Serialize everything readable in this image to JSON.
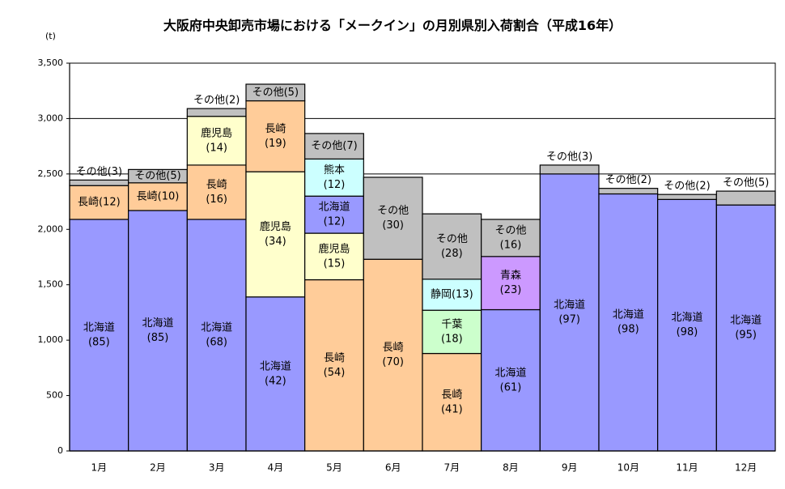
{
  "chart_data": {
    "type": "bar",
    "stacked": true,
    "title": "大阪府中央卸売市場における「メークイン」の月別県別入荷割合（平成16年）",
    "unit_label": "(t)",
    "ylim": [
      0,
      3500
    ],
    "yticks": [
      0,
      500,
      1000,
      1500,
      2000,
      2500,
      3000,
      3500
    ],
    "ytick_labels": [
      "0",
      "500",
      "1,000",
      "1,500",
      "2,000",
      "2,500",
      "3,000",
      "3,500"
    ],
    "grid": true,
    "categories": [
      "1月",
      "2月",
      "3月",
      "4月",
      "5月",
      "6月",
      "7月",
      "8月",
      "9月",
      "10月",
      "11月",
      "12月"
    ],
    "bars": [
      {
        "month": "1月",
        "segments": [
          {
            "name": "北海道",
            "pct": "(85)",
            "value": 2090,
            "color": "#9999ff",
            "label_pos": "inside"
          },
          {
            "name": "長崎",
            "pct": "(12)",
            "value": 305,
            "color": "#ffcc99",
            "label_pos": "inline"
          },
          {
            "name": "その他",
            "pct": "(3)",
            "value": 50,
            "color": "#c0c0c0",
            "label_pos": "above"
          }
        ]
      },
      {
        "month": "2月",
        "segments": [
          {
            "name": "北海道",
            "pct": "(85)",
            "value": 2170,
            "color": "#9999ff",
            "label_pos": "inside"
          },
          {
            "name": "長崎",
            "pct": "(10)",
            "value": 250,
            "color": "#ffcc99",
            "label_pos": "inline"
          },
          {
            "name": "その他",
            "pct": "(5)",
            "value": 120,
            "color": "#c0c0c0",
            "label_pos": "inline"
          }
        ]
      },
      {
        "month": "3月",
        "segments": [
          {
            "name": "北海道",
            "pct": "(68)",
            "value": 2090,
            "color": "#9999ff",
            "label_pos": "inside"
          },
          {
            "name": "長崎",
            "pct": "(16)",
            "value": 490,
            "color": "#ffcc99",
            "label_pos": "inside"
          },
          {
            "name": "鹿児島",
            "pct": "(14)",
            "value": 440,
            "color": "#ffffcc",
            "label_pos": "inside"
          },
          {
            "name": "その他",
            "pct": "(2)",
            "value": 70,
            "color": "#c0c0c0",
            "label_pos": "above"
          }
        ]
      },
      {
        "month": "4月",
        "segments": [
          {
            "name": "北海道",
            "pct": "(42)",
            "value": 1390,
            "color": "#9999ff",
            "label_pos": "inside"
          },
          {
            "name": "鹿児島",
            "pct": "(34)",
            "value": 1130,
            "color": "#ffffcc",
            "label_pos": "inside"
          },
          {
            "name": "長崎",
            "pct": "(19)",
            "value": 640,
            "color": "#ffcc99",
            "label_pos": "inside"
          },
          {
            "name": "その他",
            "pct": "(5)",
            "value": 150,
            "color": "#c0c0c0",
            "label_pos": "inline"
          }
        ]
      },
      {
        "month": "5月",
        "segments": [
          {
            "name": "長崎",
            "pct": "(54)",
            "value": 1545,
            "color": "#ffcc99",
            "label_pos": "inside"
          },
          {
            "name": "鹿児島",
            "pct": "(15)",
            "value": 420,
            "color": "#ffffcc",
            "label_pos": "inside"
          },
          {
            "name": "北海道",
            "pct": "(12)",
            "value": 335,
            "color": "#9999ff",
            "label_pos": "inside"
          },
          {
            "name": "熊本",
            "pct": "(12)",
            "value": 335,
            "color": "#ccffff",
            "label_pos": "inside"
          },
          {
            "name": "その他",
            "pct": "(7)",
            "value": 230,
            "color": "#c0c0c0",
            "label_pos": "inline"
          }
        ]
      },
      {
        "month": "6月",
        "segments": [
          {
            "name": "長崎",
            "pct": "(70)",
            "value": 1730,
            "color": "#ffcc99",
            "label_pos": "inside"
          },
          {
            "name": "その他",
            "pct": "(30)",
            "value": 740,
            "color": "#c0c0c0",
            "label_pos": "inside"
          }
        ]
      },
      {
        "month": "7月",
        "segments": [
          {
            "name": "長崎",
            "pct": "(41)",
            "value": 880,
            "color": "#ffcc99",
            "label_pos": "inside"
          },
          {
            "name": "千葉",
            "pct": "(18)",
            "value": 390,
            "color": "#ccffcc",
            "label_pos": "inside"
          },
          {
            "name": "静岡",
            "pct": "(13)",
            "value": 280,
            "color": "#ccffff",
            "label_pos": "inline"
          },
          {
            "name": "その他",
            "pct": "(28)",
            "value": 590,
            "color": "#c0c0c0",
            "label_pos": "inside"
          }
        ]
      },
      {
        "month": "8月",
        "segments": [
          {
            "name": "北海道",
            "pct": "(61)",
            "value": 1275,
            "color": "#9999ff",
            "label_pos": "inside"
          },
          {
            "name": "青森",
            "pct": "(23)",
            "value": 480,
            "color": "#cc99ff",
            "label_pos": "inside"
          },
          {
            "name": "その他",
            "pct": "(16)",
            "value": 335,
            "color": "#c0c0c0",
            "label_pos": "inside"
          }
        ]
      },
      {
        "month": "9月",
        "segments": [
          {
            "name": "北海道",
            "pct": "(97)",
            "value": 2500,
            "color": "#9999ff",
            "label_pos": "inside"
          },
          {
            "name": "その他",
            "pct": "(3)",
            "value": 80,
            "color": "#c0c0c0",
            "label_pos": "above"
          }
        ]
      },
      {
        "month": "10月",
        "segments": [
          {
            "name": "北海道",
            "pct": "(98)",
            "value": 2320,
            "color": "#9999ff",
            "label_pos": "inside"
          },
          {
            "name": "その他",
            "pct": "(2)",
            "value": 50,
            "color": "#c0c0c0",
            "label_pos": "above"
          }
        ]
      },
      {
        "month": "11月",
        "segments": [
          {
            "name": "北海道",
            "pct": "(98)",
            "value": 2270,
            "color": "#9999ff",
            "label_pos": "inside"
          },
          {
            "name": "その他",
            "pct": "(2)",
            "value": 45,
            "color": "#c0c0c0",
            "label_pos": "above"
          }
        ]
      },
      {
        "month": "12月",
        "segments": [
          {
            "name": "北海道",
            "pct": "(95)",
            "value": 2220,
            "color": "#9999ff",
            "label_pos": "inside"
          },
          {
            "name": "その他",
            "pct": "(5)",
            "value": 125,
            "color": "#c0c0c0",
            "label_pos": "above"
          }
        ]
      }
    ]
  }
}
